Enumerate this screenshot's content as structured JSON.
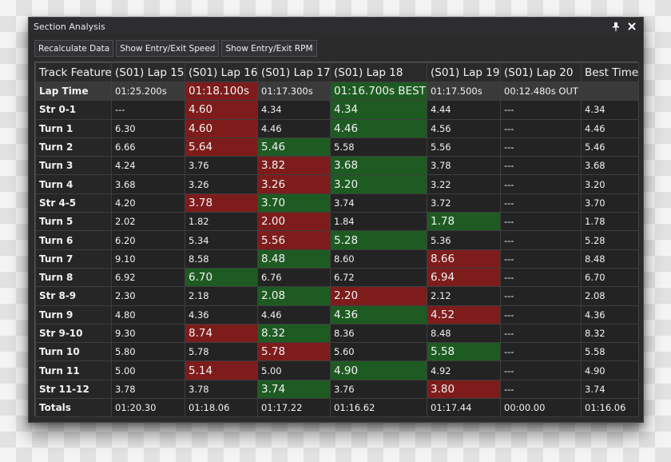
{
  "window": {
    "title": "Section Analysis",
    "pin_icon": "pin-icon",
    "close_icon": "close-icon"
  },
  "toolbar": {
    "recalculate_label": "Recalculate Data",
    "entry_exit_speed_label": "Show Entry/Exit Speed",
    "entry_exit_rpm_label": "Show Entry/Exit RPM"
  },
  "colors": {
    "slower": "#7e1c1c",
    "faster": "#1e5b22",
    "panel": "#2b2b2b"
  },
  "table": {
    "headers": [
      "Track Feature",
      "(S01) Lap 15",
      "(S01) Lap 16",
      "(S01) Lap 17",
      "(S01) Lap 18",
      "(S01) Lap 19",
      "(S01) Lap 20",
      "Best Time"
    ],
    "rows": [
      {
        "feature": "Lap Time",
        "cells": [
          "01:25.200s",
          "01:18.100s",
          "01:17.300s",
          "01:16.700s BEST",
          "01:17.500s",
          "00:12.480s OUT",
          ""
        ],
        "hl": [
          "",
          "red",
          "",
          "green",
          "",
          "",
          ""
        ]
      },
      {
        "feature": "Str 0-1",
        "cells": [
          "---",
          "4.60",
          "4.34",
          "4.34",
          "4.44",
          "---",
          "4.34"
        ],
        "hl": [
          "",
          "red",
          "",
          "green",
          "",
          "",
          ""
        ]
      },
      {
        "feature": "Turn 1",
        "cells": [
          "6.30",
          "4.60",
          "4.46",
          "4.46",
          "4.56",
          "---",
          "4.46"
        ],
        "hl": [
          "",
          "red",
          "",
          "green",
          "",
          "",
          ""
        ]
      },
      {
        "feature": "Turn 2",
        "cells": [
          "6.66",
          "5.64",
          "5.46",
          "5.58",
          "5.56",
          "---",
          "5.46"
        ],
        "hl": [
          "",
          "red",
          "green",
          "",
          "",
          "",
          ""
        ]
      },
      {
        "feature": "Turn 3",
        "cells": [
          "4.24",
          "3.76",
          "3.82",
          "3.68",
          "3.78",
          "---",
          "3.68"
        ],
        "hl": [
          "",
          "",
          "red",
          "green",
          "",
          "",
          ""
        ]
      },
      {
        "feature": "Turn 4",
        "cells": [
          "3.68",
          "3.26",
          "3.26",
          "3.20",
          "3.22",
          "---",
          "3.20"
        ],
        "hl": [
          "",
          "",
          "red",
          "green",
          "",
          "",
          ""
        ]
      },
      {
        "feature": "Str 4-5",
        "cells": [
          "4.20",
          "3.78",
          "3.70",
          "3.74",
          "3.72",
          "---",
          "3.70"
        ],
        "hl": [
          "",
          "red",
          "green",
          "",
          "",
          "",
          ""
        ]
      },
      {
        "feature": "Turn 5",
        "cells": [
          "2.02",
          "1.82",
          "2.00",
          "1.84",
          "1.78",
          "---",
          "1.78"
        ],
        "hl": [
          "",
          "",
          "red",
          "",
          "green",
          "",
          ""
        ]
      },
      {
        "feature": "Turn 6",
        "cells": [
          "6.20",
          "5.34",
          "5.56",
          "5.28",
          "5.36",
          "---",
          "5.28"
        ],
        "hl": [
          "",
          "",
          "red",
          "green",
          "",
          "",
          ""
        ]
      },
      {
        "feature": "Turn 7",
        "cells": [
          "9.10",
          "8.58",
          "8.48",
          "8.60",
          "8.66",
          "---",
          "8.48"
        ],
        "hl": [
          "",
          "",
          "green",
          "",
          "red",
          "",
          ""
        ]
      },
      {
        "feature": "Turn 8",
        "cells": [
          "6.92",
          "6.70",
          "6.76",
          "6.72",
          "6.94",
          "---",
          "6.70"
        ],
        "hl": [
          "",
          "green",
          "",
          "",
          "red",
          "",
          ""
        ]
      },
      {
        "feature": "Str 8-9",
        "cells": [
          "2.30",
          "2.18",
          "2.08",
          "2.20",
          "2.12",
          "---",
          "2.08"
        ],
        "hl": [
          "",
          "",
          "green",
          "red",
          "",
          "",
          ""
        ]
      },
      {
        "feature": "Turn 9",
        "cells": [
          "4.80",
          "4.36",
          "4.46",
          "4.36",
          "4.52",
          "---",
          "4.36"
        ],
        "hl": [
          "",
          "",
          "",
          "green",
          "red",
          "",
          ""
        ]
      },
      {
        "feature": "Str 9-10",
        "cells": [
          "9.30",
          "8.74",
          "8.32",
          "8.36",
          "8.48",
          "---",
          "8.32"
        ],
        "hl": [
          "",
          "red",
          "green",
          "",
          "",
          "",
          ""
        ]
      },
      {
        "feature": "Turn 10",
        "cells": [
          "5.80",
          "5.78",
          "5.78",
          "5.60",
          "5.58",
          "---",
          "5.58"
        ],
        "hl": [
          "",
          "",
          "red",
          "",
          "green",
          "",
          ""
        ]
      },
      {
        "feature": "Turn 11",
        "cells": [
          "5.00",
          "5.14",
          "5.00",
          "4.90",
          "4.92",
          "---",
          "4.90"
        ],
        "hl": [
          "",
          "red",
          "",
          "green",
          "",
          "",
          ""
        ]
      },
      {
        "feature": "Str 11-12",
        "cells": [
          "3.78",
          "3.78",
          "3.74",
          "3.76",
          "3.80",
          "---",
          "3.74"
        ],
        "hl": [
          "",
          "",
          "green",
          "",
          "red",
          "",
          ""
        ]
      },
      {
        "feature": "Totals",
        "cells": [
          "01:20.30",
          "01:18.06",
          "01:17.22",
          "01:16.62",
          "01:17.44",
          "00:00.00",
          "01:16.06"
        ],
        "hl": [
          "",
          "",
          "",
          "",
          "",
          "",
          ""
        ]
      }
    ]
  }
}
